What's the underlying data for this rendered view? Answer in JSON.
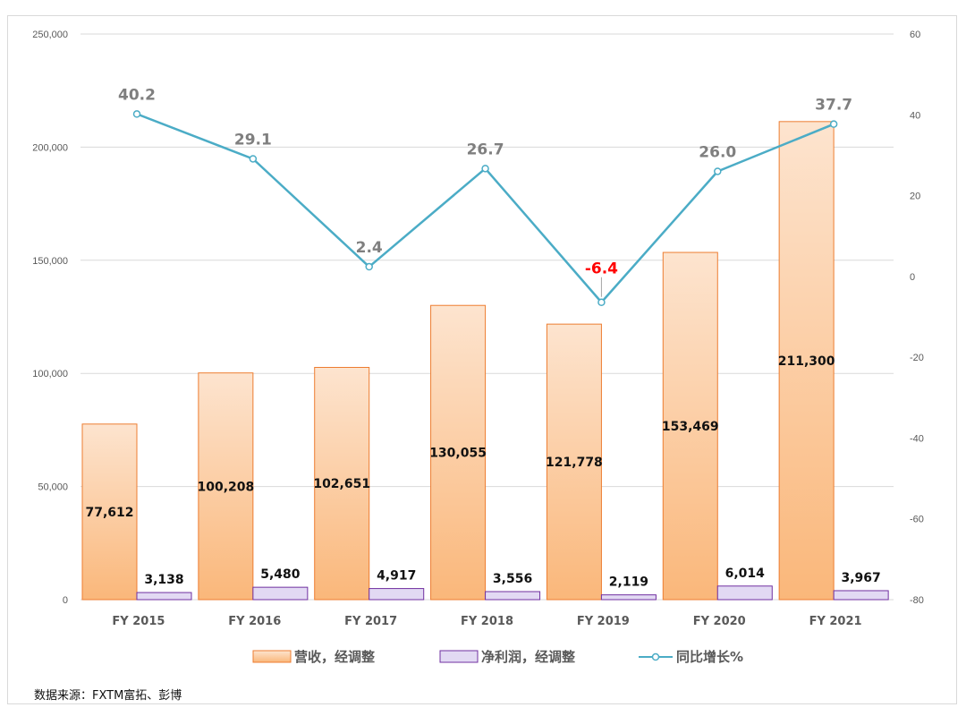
{
  "chart_data": {
    "type": "bar+line",
    "categories": [
      "FY 2015",
      "FY 2016",
      "FY 2017",
      "FY 2018",
      "FY 2019",
      "FY 2020",
      "FY 2021"
    ],
    "series": [
      {
        "name": "营收，经调整",
        "type": "bar",
        "axis": "left",
        "values": [
          77612,
          100208,
          102651,
          130055,
          121778,
          153469,
          211300
        ],
        "labels": [
          "77,612",
          "100,208",
          "102,651",
          "130,055",
          "121,778",
          "153,469",
          "211,300"
        ]
      },
      {
        "name": "净利润，经调整",
        "type": "bar",
        "axis": "left",
        "values": [
          3138,
          5480,
          4917,
          3556,
          2119,
          6014,
          3967
        ],
        "labels": [
          "3,138",
          "5,480",
          "4,917",
          "3,556",
          "2,119",
          "6,014",
          "3,967"
        ]
      },
      {
        "name": "同比增长%",
        "type": "line",
        "axis": "right",
        "values": [
          40.2,
          29.1,
          2.4,
          26.7,
          -6.4,
          26.0,
          37.7
        ],
        "labels": [
          "40.2",
          "29.1",
          "2.4",
          "26.7",
          "-6.4",
          "26.0",
          "37.7"
        ]
      }
    ],
    "y_left": {
      "min": 0,
      "max": 250000,
      "ticks": [
        "0",
        "50,000",
        "100,000",
        "150,000",
        "200,000",
        "250,000"
      ]
    },
    "y_right": {
      "min": -80,
      "max": 60,
      "ticks": [
        "-80",
        "-60",
        "-40",
        "-20",
        "0",
        "20",
        "40",
        "60"
      ]
    },
    "grid": true,
    "legend_position": "bottom",
    "colors": {
      "revenue_fill_top": "#fde4cf",
      "revenue_fill_bottom": "#fab77a",
      "revenue_border": "#ed7d31",
      "profit_fill": "#e2d9f3",
      "profit_border": "#7030a0",
      "line": "#4bacc6",
      "negative_label": "#ff0000",
      "grid": "#d9d9d9"
    }
  },
  "source_text": "数据来源：FXTM富拓、彭博"
}
